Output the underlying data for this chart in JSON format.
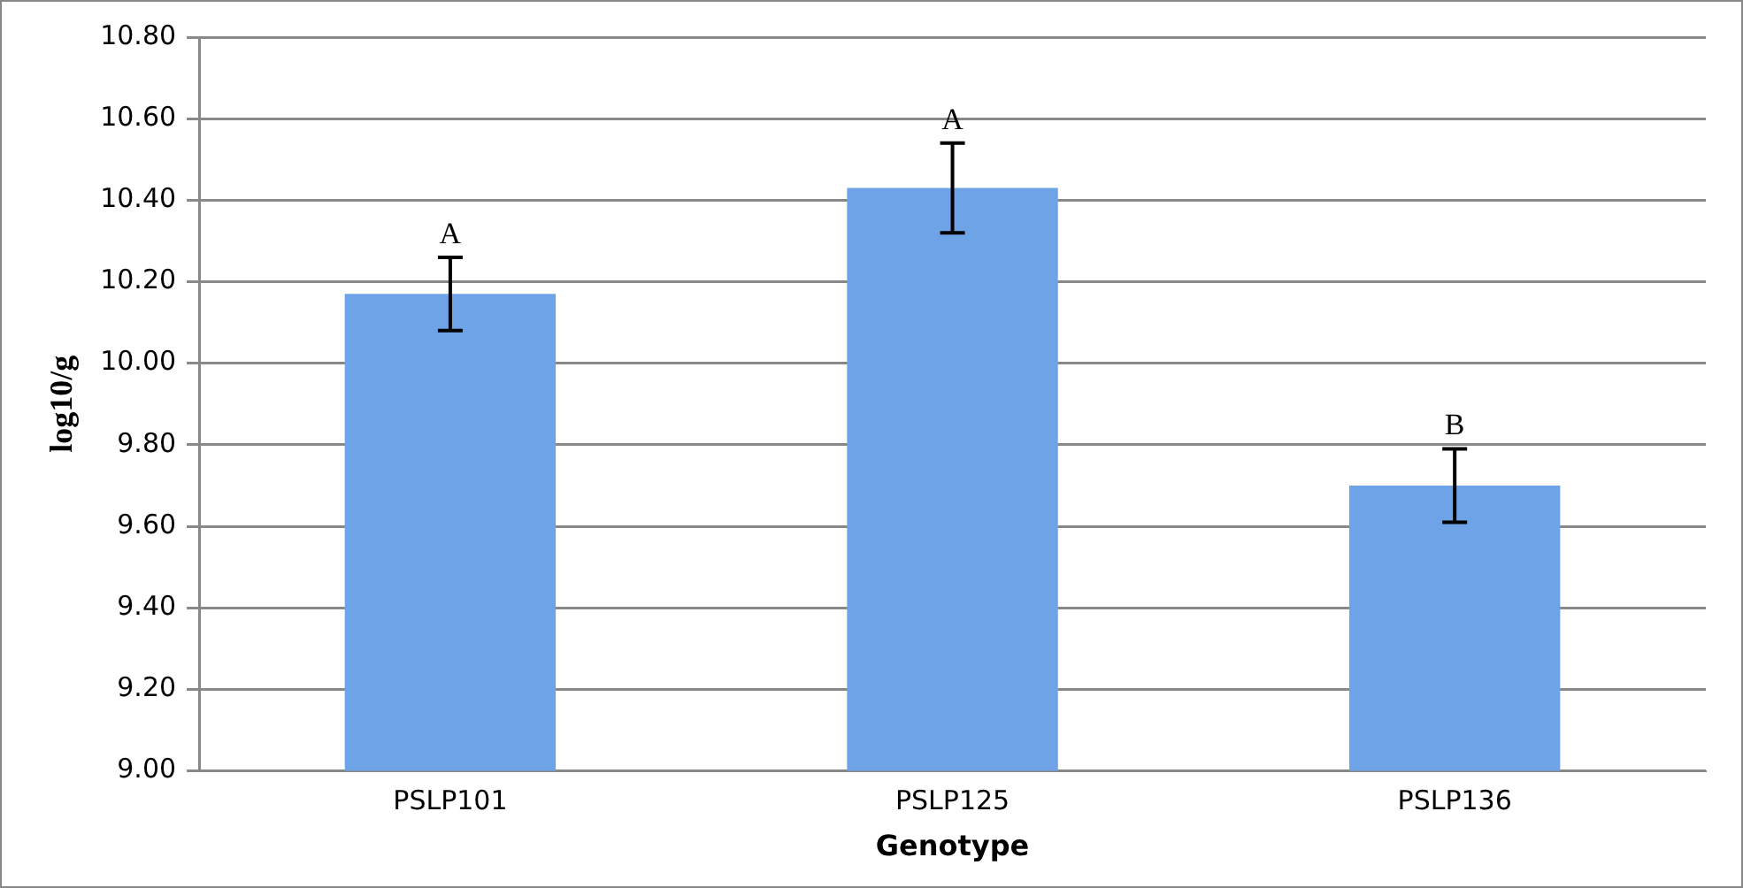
{
  "chart_data": {
    "type": "bar",
    "xlabel": "Genotype",
    "ylabel": "log10/g",
    "categories": [
      "PSLP101",
      "PSLP125",
      "PSLP136"
    ],
    "values": [
      10.17,
      10.43,
      9.7
    ],
    "errors": [
      0.09,
      0.11,
      0.09
    ],
    "color": "#6fa3e8",
    "ylim": [
      9.0,
      10.8
    ],
    "yticks": [
      {
        "value": 9.0,
        "label": "9.00"
      },
      {
        "value": 9.2,
        "label": "9.20"
      },
      {
        "value": 9.4,
        "label": "9.40"
      },
      {
        "value": 9.6,
        "label": "9.60"
      },
      {
        "value": 9.8,
        "label": "9.80"
      },
      {
        "value": 10.0,
        "label": "10.00"
      },
      {
        "value": 10.2,
        "label": "10.20"
      },
      {
        "value": 10.4,
        "label": "10.40"
      },
      {
        "value": 10.6,
        "label": "10.60"
      },
      {
        "value": 10.8,
        "label": "10.80"
      }
    ],
    "grid": "y",
    "annotations": [
      {
        "text": "A",
        "x": "PSLP101",
        "y": 10.26
      },
      {
        "text": "A",
        "x": "PSLP125",
        "y": 10.54
      },
      {
        "text": "B",
        "x": "PSLP136",
        "y": 9.79
      }
    ]
  }
}
